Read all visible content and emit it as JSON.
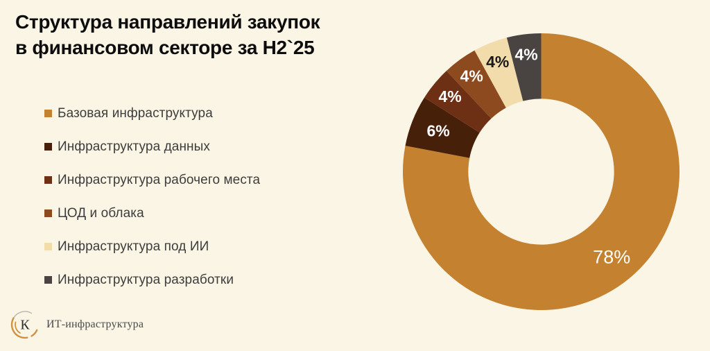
{
  "title": {
    "line1": "Структура направлений закупок",
    "line2": "в финансовом секторе за H2`25"
  },
  "chart_data": {
    "type": "pie",
    "subtype": "donut",
    "title": "Структура направлений закупок в финансовом секторе за H2`25",
    "unit": "%",
    "direction": "clockwise",
    "start_angle_deg": 0,
    "inner_radius_ratio": 0.527,
    "legend_position": "left",
    "slices": [
      {
        "label": "Базовая инфраструктура",
        "value": 78,
        "display": "78%",
        "color": "#C4812F",
        "label_color": "#FFFFFF"
      },
      {
        "label": "Инфраструктура данных",
        "value": 6,
        "display": "6%",
        "color": "#472009",
        "label_color": "#FFFFFF"
      },
      {
        "label": "Инфраструктура рабочего места",
        "value": 4,
        "display": "4%",
        "color": "#6E3014",
        "label_color": "#FFFFFF"
      },
      {
        "label": "ЦОД и облака",
        "value": 4,
        "display": "4%",
        "color": "#8C4A1E",
        "label_color": "#FFFFFF"
      },
      {
        "label": "Инфраструктура под ИИ",
        "value": 4,
        "display": "4%",
        "color": "#F2DCAC",
        "label_color": "#1A1A1A"
      },
      {
        "label": "Инфраструктура разработки",
        "value": 4,
        "display": "4%",
        "color": "#494442",
        "label_color": "#FFFFFF"
      }
    ]
  },
  "footer": {
    "logo_letter": "К",
    "logo_text": "ИТ-инфраструктура"
  },
  "colors": {
    "background": "#FAF5E5",
    "title_text": "#0D0D0D",
    "legend_text": "#3D3D3D",
    "logo_orange": "#D1913F",
    "logo_gray": "#B9B5AC"
  }
}
